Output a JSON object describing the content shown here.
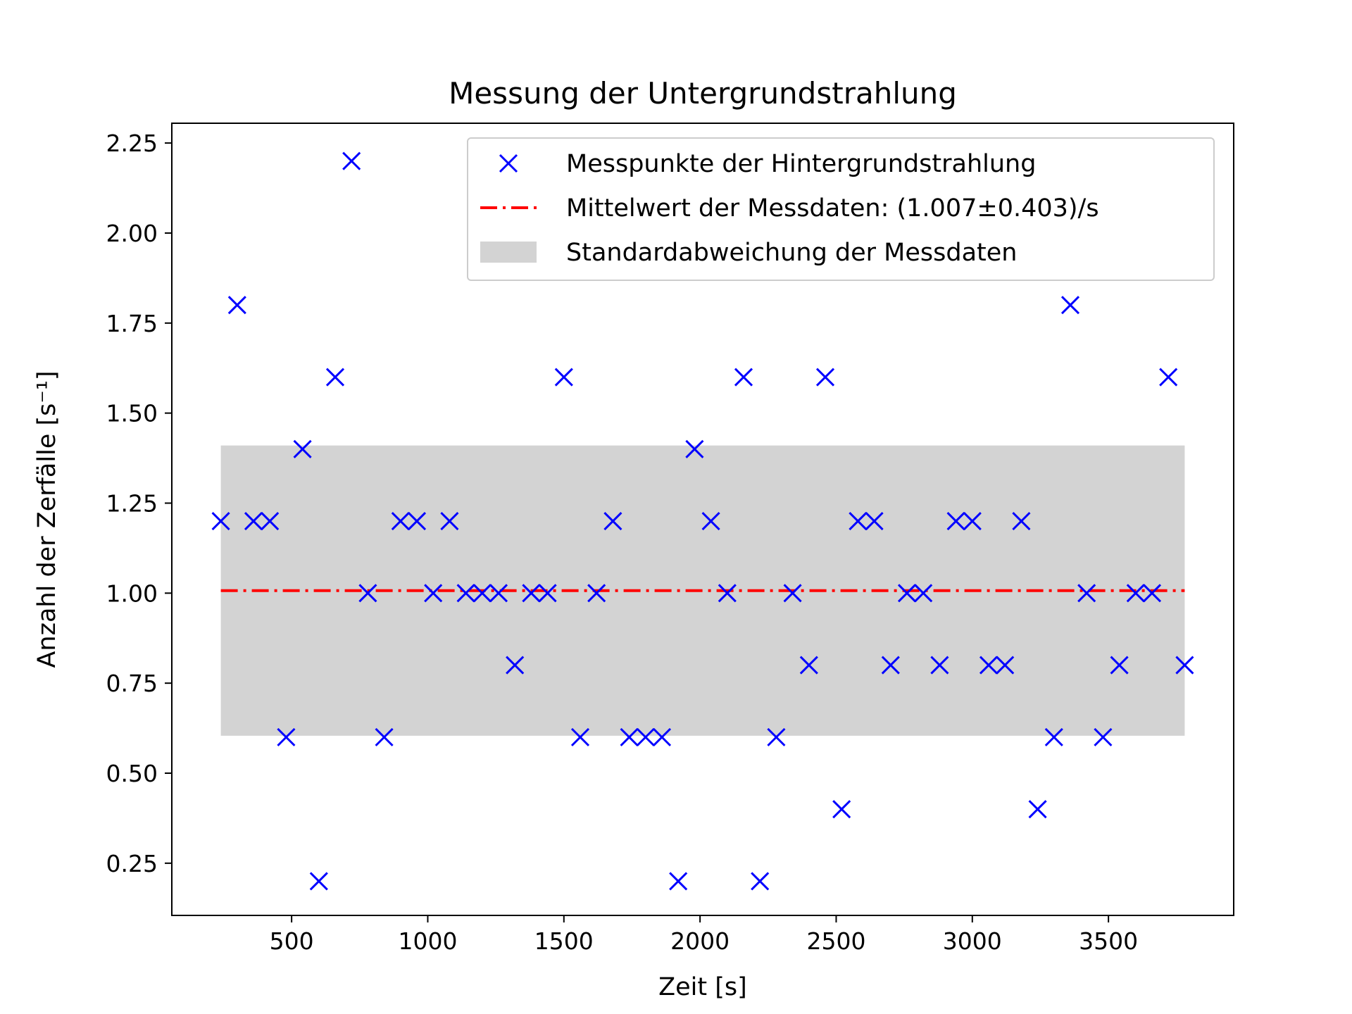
{
  "chart_data": {
    "type": "scatter",
    "title": "Messung der Untergrundstrahlung",
    "xlabel": "Zeit [s]",
    "ylabel": "Anzahl der Zerfälle [s⁻¹]",
    "xlim": [
      60,
      3960
    ],
    "ylim": [
      0.105,
      2.305
    ],
    "xticks": [
      "500",
      "1000",
      "1500",
      "2000",
      "2500",
      "3000",
      "3500"
    ],
    "yticks": [
      "0.25",
      "0.50",
      "0.75",
      "1.00",
      "1.25",
      "1.50",
      "1.75",
      "2.00",
      "2.25"
    ],
    "grid": false,
    "legend_position": "top-right",
    "series": [
      {
        "name": "Messpunkte der Hintergrundstrahlung",
        "kind": "scatter",
        "marker": "x",
        "color": "#0000ff",
        "x": [
          240,
          300,
          360,
          420,
          480,
          540,
          600,
          660,
          720,
          780,
          840,
          900,
          960,
          1020,
          1080,
          1140,
          1200,
          1260,
          1320,
          1380,
          1440,
          1500,
          1560,
          1620,
          1680,
          1740,
          1800,
          1860,
          1920,
          1980,
          2040,
          2100,
          2160,
          2220,
          2280,
          2340,
          2400,
          2460,
          2520,
          2580,
          2640,
          2700,
          2760,
          2820,
          2880,
          2940,
          3000,
          3060,
          3120,
          3180,
          3240,
          3300,
          3360,
          3420,
          3480,
          3540,
          3600,
          3660,
          3720,
          3780
        ],
        "y": [
          1.2,
          1.8,
          1.2,
          1.2,
          0.6,
          1.4,
          0.2,
          1.6,
          2.2,
          1.0,
          0.6,
          1.2,
          1.2,
          1.0,
          1.2,
          1.0,
          1.0,
          1.0,
          0.8,
          1.0,
          1.0,
          1.6,
          0.6,
          1.0,
          1.2,
          0.6,
          0.6,
          0.6,
          0.2,
          1.4,
          1.2,
          1.0,
          1.6,
          0.2,
          0.6,
          1.0,
          0.8,
          1.6,
          0.4,
          1.2,
          1.2,
          0.8,
          1.0,
          1.0,
          0.8,
          1.2,
          1.2,
          0.8,
          0.8,
          1.2,
          0.4,
          0.6,
          1.8,
          1.0,
          0.6,
          0.8,
          1.0,
          1.0,
          1.6,
          0.8
        ]
      },
      {
        "name": "Mittelwert der Messdaten: (1.007±0.403)/s",
        "kind": "line",
        "style": "dashdot",
        "color": "#ff0000",
        "x": [
          240,
          3780
        ],
        "y": [
          1.007,
          1.007
        ]
      },
      {
        "name": "Standardabweichung der Messdaten",
        "kind": "band",
        "color": "#d3d3d3",
        "x": [
          240,
          3780
        ],
        "y_low": 0.604,
        "y_high": 1.41
      }
    ]
  }
}
